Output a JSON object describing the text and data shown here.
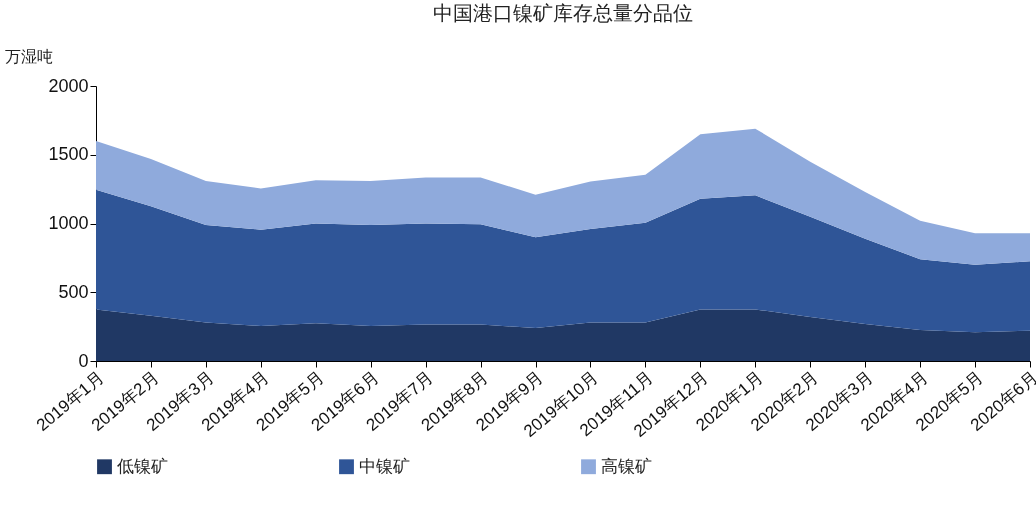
{
  "chart_data": {
    "type": "area",
    "title": "中国港口镍矿库存总量分品位",
    "ylabel": "万湿吨",
    "stacked": true,
    "legend": "bottom",
    "grid": false,
    "categories": [
      "2019年1月",
      "2019年2月",
      "2019年3月",
      "2019年4月",
      "2019年5月",
      "2019年6月",
      "2019年7月",
      "2019年8月",
      "2019年9月",
      "2019年10月",
      "2019年11月",
      "2019年12月",
      "2020年1月",
      "2020年2月",
      "2020年3月",
      "2020年4月",
      "2020年5月",
      "2020年6月"
    ],
    "ylim": [
      0,
      2000
    ],
    "yticks": [
      0,
      500,
      1000,
      1500,
      2000
    ],
    "series": [
      {
        "name": "低镍矿",
        "color": "#203864",
        "values": [
          375,
          330,
          280,
          255,
          275,
          255,
          265,
          265,
          240,
          280,
          280,
          375,
          375,
          320,
          270,
          225,
          210,
          220
        ]
      },
      {
        "name": "中镍矿",
        "color": "#2f5597",
        "values": [
          870,
          795,
          710,
          700,
          725,
          735,
          735,
          730,
          660,
          680,
          725,
          805,
          830,
          730,
          620,
          515,
          490,
          505
        ]
      },
      {
        "name": "高镍矿",
        "color": "#8faadc",
        "values": [
          355,
          345,
          320,
          300,
          315,
          320,
          335,
          340,
          310,
          345,
          350,
          470,
          485,
          400,
          340,
          280,
          230,
          205
        ]
      }
    ]
  }
}
